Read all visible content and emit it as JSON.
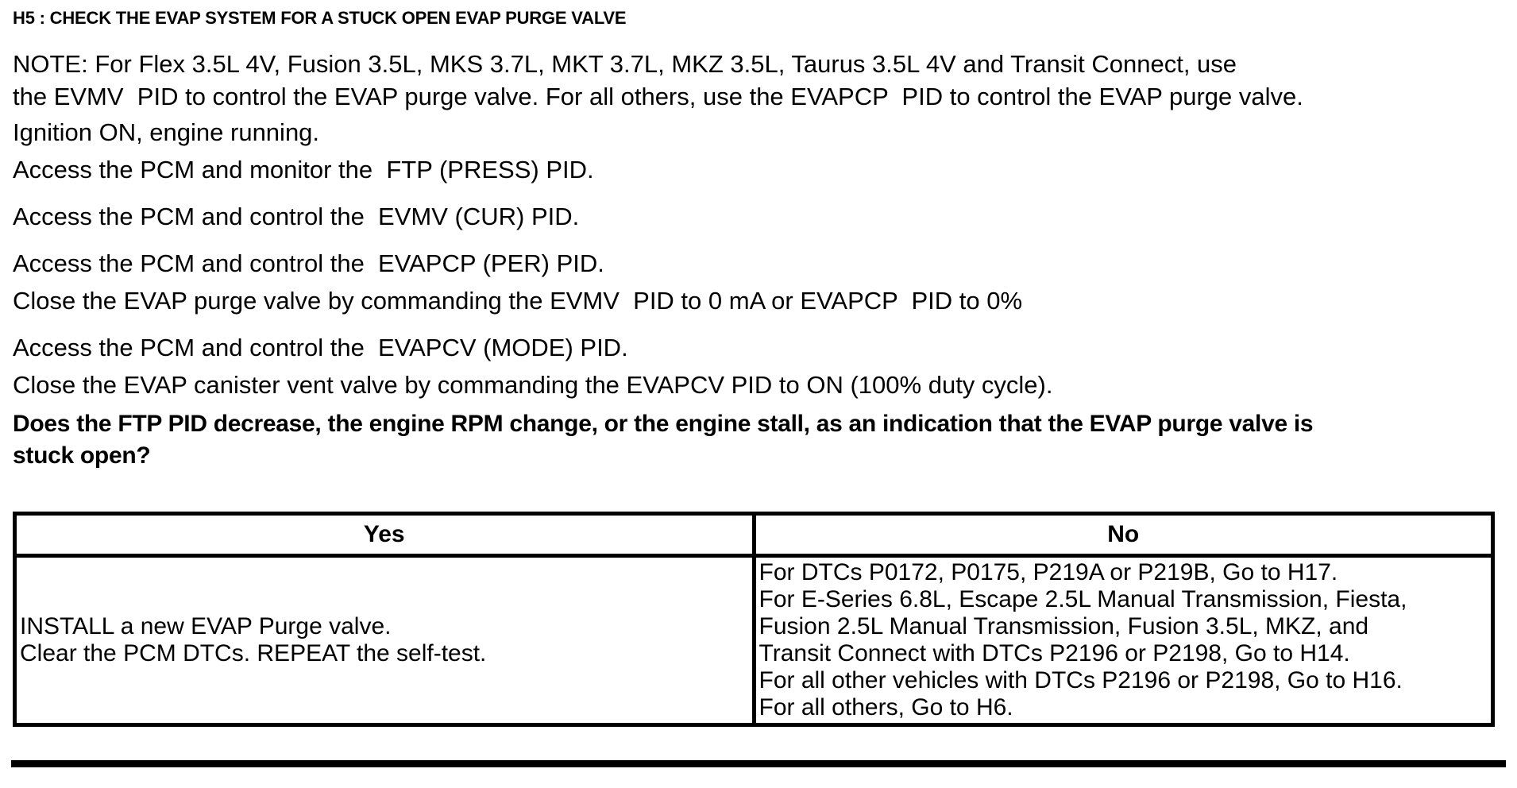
{
  "document": {
    "title": "H5 : CHECK THE EVAP SYSTEM FOR A STUCK OPEN EVAP PURGE VALVE",
    "paragraphs": [
      {
        "lines": [
          "NOTE: For Flex 3.5L 4V, Fusion 3.5L, MKS 3.7L, MKT 3.7L, MKZ 3.5L, Taurus 3.5L 4V and Transit Connect, use",
          "the EVMV  PID to control the EVAP purge valve. For all others, use the EVAPCP  PID to control the EVAP purge valve."
        ]
      },
      {
        "lines": [
          "Ignition ON, engine running."
        ]
      },
      {
        "lines": [
          "Access the PCM and monitor the  FTP (PRESS) PID."
        ]
      },
      {
        "lines": [
          "Access the PCM and control the  EVMV (CUR) PID."
        ]
      },
      {
        "lines": [
          "Access the PCM and control the  EVAPCP (PER) PID."
        ]
      },
      {
        "lines": [
          "Close the EVAP purge valve by commanding the EVMV  PID to 0 mA or EVAPCP  PID to 0%"
        ]
      },
      {
        "lines": [
          "Access the PCM and control the  EVAPCV (MODE) PID."
        ]
      },
      {
        "lines": [
          "Close the EVAP canister vent valve by commanding the EVAPCV PID to ON (100% duty cycle)."
        ]
      },
      {
        "lines": [
          "Does the FTP PID decrease, the engine RPM change, or the engine stall, as an indication that the EVAP purge valve is",
          "stuck open?"
        ]
      }
    ],
    "table": {
      "headers": [
        "Yes",
        "No"
      ],
      "yes_lines": [
        "INSTALL a new EVAP Purge valve.",
        "Clear the PCM DTCs. REPEAT the self-test."
      ],
      "no_lines": [
        "For DTCs P0172, P0175, P219A or P219B, Go to H17.",
        "For E-Series 6.8L, Escape 2.5L Manual Transmission, Fiesta,",
        "Fusion 2.5L Manual Transmission, Fusion 3.5L, MKZ, and",
        "Transit Connect with DTCs P2196 or P2198, Go to H14.",
        "For all other vehicles with DTCs P2196 or P2198, Go to H16.",
        "For all others, Go to H6."
      ]
    }
  }
}
